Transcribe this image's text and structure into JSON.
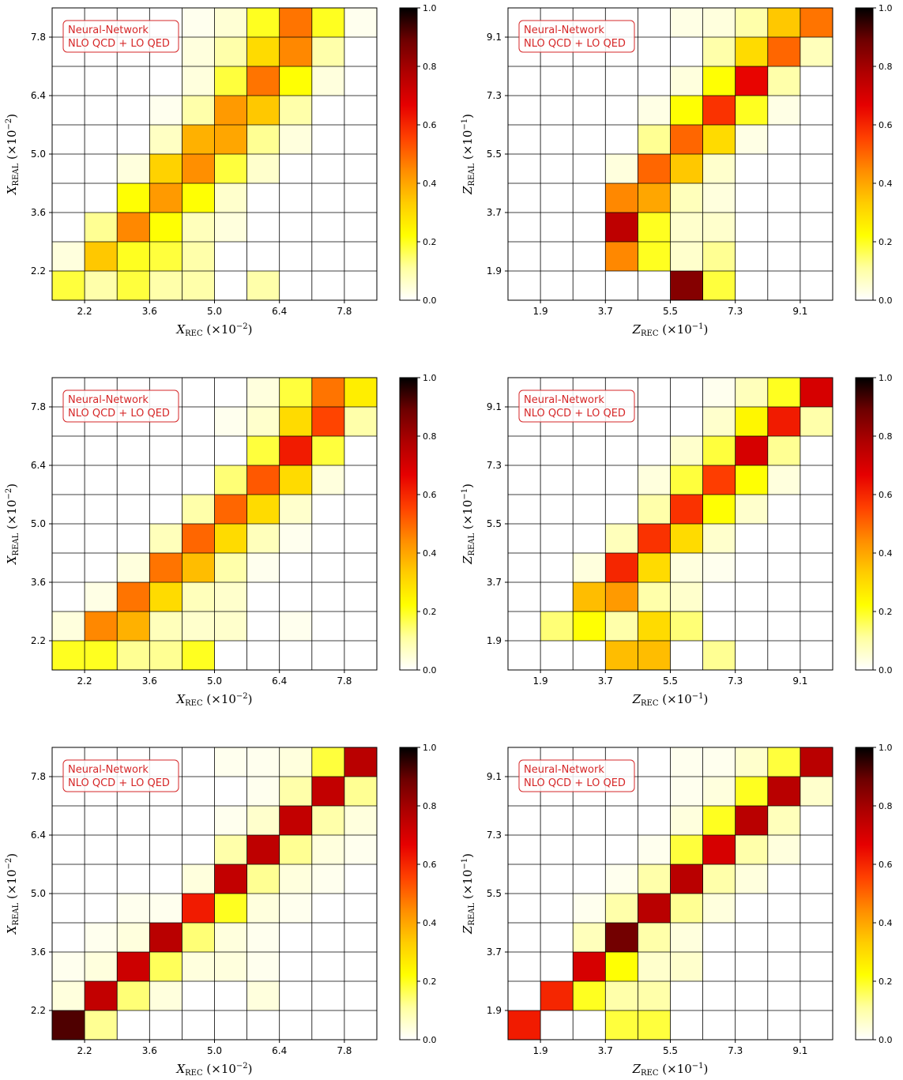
{
  "figure": {
    "annotation_line1": "Neural-Network",
    "annotation_line2": "NLO QCD + LO QED",
    "colorbar_ticks": [
      "0.0",
      "0.2",
      "0.4",
      "0.6",
      "0.8",
      "1.0"
    ],
    "colorbar_levels": [
      0.0,
      0.2,
      0.4,
      0.6,
      0.8,
      1.0
    ],
    "colormap": [
      "#ffffff",
      "#ffffa0",
      "#ffff00",
      "#ffcc00",
      "#ff8c00",
      "#ff4000",
      "#e60000",
      "#b00000",
      "#6e0000",
      "#000000"
    ]
  },
  "chart_data": [
    {
      "type": "heatmap",
      "variable": "X",
      "xlabel": "X_REC (×10^-2)",
      "ylabel": "X_REAL (×10^-2)",
      "xticks": [
        "2.2",
        "3.6",
        "5.0",
        "6.4",
        "7.8"
      ],
      "yticks": [
        "2.2",
        "3.6",
        "5.0",
        "6.4",
        "7.8"
      ],
      "bins": 10,
      "values": [
        [
          0.18,
          0.1,
          0.18,
          0.1,
          0.1,
          0.0,
          0.1,
          0.0,
          0.0,
          0.0
        ],
        [
          0.04,
          0.34,
          0.2,
          0.18,
          0.1,
          0.0,
          0.0,
          0.0,
          0.0,
          0.0
        ],
        [
          0.0,
          0.12,
          0.45,
          0.22,
          0.08,
          0.04,
          0.0,
          0.0,
          0.0,
          0.0
        ],
        [
          0.0,
          0.0,
          0.22,
          0.42,
          0.22,
          0.06,
          0.0,
          0.0,
          0.0,
          0.0
        ],
        [
          0.0,
          0.0,
          0.04,
          0.32,
          0.44,
          0.18,
          0.06,
          0.0,
          0.0,
          0.0
        ],
        [
          0.0,
          0.0,
          0.0,
          0.07,
          0.38,
          0.4,
          0.12,
          0.04,
          0.0,
          0.0
        ],
        [
          0.0,
          0.0,
          0.0,
          0.02,
          0.1,
          0.42,
          0.34,
          0.1,
          0.0,
          0.0
        ],
        [
          0.0,
          0.0,
          0.0,
          0.0,
          0.04,
          0.18,
          0.48,
          0.22,
          0.04,
          0.0
        ],
        [
          0.0,
          0.0,
          0.0,
          0.0,
          0.04,
          0.1,
          0.3,
          0.45,
          0.1,
          0.0
        ],
        [
          0.0,
          0.0,
          0.0,
          0.0,
          0.02,
          0.05,
          0.2,
          0.48,
          0.2,
          0.02
        ]
      ]
    },
    {
      "type": "heatmap",
      "variable": "Z",
      "xlabel": "Z_REC (×10^-1)",
      "ylabel": "Z_REAL (×10^-1)",
      "xticks": [
        "1.9",
        "3.7",
        "5.5",
        "7.3",
        "9.1"
      ],
      "yticks": [
        "1.9",
        "3.7",
        "5.5",
        "7.3",
        "9.1"
      ],
      "bins": 10,
      "values": [
        [
          0.0,
          0.0,
          0.0,
          0.0,
          0.0,
          0.85,
          0.18,
          0.0,
          0.0,
          0.0
        ],
        [
          0.0,
          0.0,
          0.0,
          0.45,
          0.2,
          0.06,
          0.12,
          0.0,
          0.0,
          0.0
        ],
        [
          0.0,
          0.0,
          0.0,
          0.75,
          0.2,
          0.06,
          0.06,
          0.0,
          0.0,
          0.0
        ],
        [
          0.0,
          0.0,
          0.0,
          0.45,
          0.4,
          0.08,
          0.04,
          0.0,
          0.0,
          0.0
        ],
        [
          0.0,
          0.0,
          0.0,
          0.04,
          0.5,
          0.34,
          0.06,
          0.0,
          0.0,
          0.0
        ],
        [
          0.0,
          0.0,
          0.0,
          0.0,
          0.12,
          0.5,
          0.3,
          0.03,
          0.0,
          0.0
        ],
        [
          0.0,
          0.0,
          0.0,
          0.0,
          0.03,
          0.22,
          0.58,
          0.2,
          0.03,
          0.0
        ],
        [
          0.0,
          0.0,
          0.0,
          0.0,
          0.0,
          0.04,
          0.22,
          0.66,
          0.1,
          0.0
        ],
        [
          0.0,
          0.0,
          0.0,
          0.0,
          0.0,
          0.0,
          0.1,
          0.3,
          0.5,
          0.08
        ],
        [
          0.0,
          0.0,
          0.0,
          0.0,
          0.0,
          0.03,
          0.04,
          0.1,
          0.34,
          0.48
        ]
      ]
    },
    {
      "type": "heatmap",
      "variable": "X",
      "xlabel": "X_REC (×10^-2)",
      "ylabel": "X_REAL (×10^-2)",
      "xticks": [
        "2.2",
        "3.6",
        "5.0",
        "6.4",
        "7.8"
      ],
      "yticks": [
        "2.2",
        "3.6",
        "5.0",
        "6.4",
        "7.8"
      ],
      "bins": 10,
      "values": [
        [
          0.2,
          0.2,
          0.12,
          0.12,
          0.2,
          0.0,
          0.0,
          0.0,
          0.0,
          0.0
        ],
        [
          0.04,
          0.45,
          0.38,
          0.08,
          0.06,
          0.06,
          0.0,
          0.02,
          0.0,
          0.0
        ],
        [
          0.0,
          0.03,
          0.48,
          0.3,
          0.08,
          0.06,
          0.0,
          0.0,
          0.0,
          0.0
        ],
        [
          0.0,
          0.0,
          0.04,
          0.48,
          0.36,
          0.1,
          0.02,
          0.0,
          0.0,
          0.0
        ],
        [
          0.0,
          0.0,
          0.0,
          0.08,
          0.5,
          0.3,
          0.08,
          0.02,
          0.0,
          0.0
        ],
        [
          0.0,
          0.0,
          0.0,
          0.0,
          0.1,
          0.5,
          0.3,
          0.06,
          0.0,
          0.0
        ],
        [
          0.0,
          0.0,
          0.0,
          0.0,
          0.0,
          0.14,
          0.52,
          0.3,
          0.04,
          0.0
        ],
        [
          0.0,
          0.0,
          0.0,
          0.0,
          0.0,
          0.0,
          0.18,
          0.62,
          0.18,
          0.0
        ],
        [
          0.0,
          0.0,
          0.0,
          0.0,
          0.0,
          0.02,
          0.06,
          0.3,
          0.55,
          0.1
        ],
        [
          0.0,
          0.0,
          0.0,
          0.0,
          0.0,
          0.0,
          0.04,
          0.18,
          0.48,
          0.26
        ]
      ]
    },
    {
      "type": "heatmap",
      "variable": "Z",
      "xlabel": "Z_REC (×10^-1)",
      "ylabel": "Z_REAL (×10^-1)",
      "xticks": [
        "1.9",
        "3.7",
        "5.5",
        "7.3",
        "9.1"
      ],
      "yticks": [
        "1.9",
        "3.7",
        "5.5",
        "7.3",
        "9.1"
      ],
      "bins": 10,
      "values": [
        [
          0.0,
          0.0,
          0.0,
          0.36,
          0.36,
          0.0,
          0.12,
          0.0,
          0.0,
          0.0
        ],
        [
          0.0,
          0.14,
          0.22,
          0.1,
          0.3,
          0.14,
          0.0,
          0.0,
          0.0,
          0.0
        ],
        [
          0.0,
          0.0,
          0.36,
          0.42,
          0.1,
          0.06,
          0.0,
          0.0,
          0.0,
          0.0
        ],
        [
          0.0,
          0.0,
          0.04,
          0.6,
          0.3,
          0.04,
          0.02,
          0.0,
          0.0,
          0.0
        ],
        [
          0.0,
          0.0,
          0.0,
          0.08,
          0.58,
          0.3,
          0.06,
          0.0,
          0.0,
          0.0
        ],
        [
          0.0,
          0.0,
          0.0,
          0.0,
          0.1,
          0.58,
          0.22,
          0.06,
          0.0,
          0.0
        ],
        [
          0.0,
          0.0,
          0.0,
          0.0,
          0.04,
          0.18,
          0.56,
          0.22,
          0.04,
          0.0
        ],
        [
          0.0,
          0.0,
          0.0,
          0.0,
          0.0,
          0.06,
          0.18,
          0.7,
          0.12,
          0.0
        ],
        [
          0.0,
          0.0,
          0.0,
          0.0,
          0.0,
          0.0,
          0.06,
          0.24,
          0.62,
          0.1
        ],
        [
          0.0,
          0.0,
          0.0,
          0.0,
          0.0,
          0.0,
          0.02,
          0.08,
          0.2,
          0.7
        ]
      ]
    },
    {
      "type": "heatmap",
      "variable": "X",
      "xlabel": "X_REC (×10^-2)",
      "ylabel": "X_REAL (×10^-2)",
      "xticks": [
        "2.2",
        "3.6",
        "5.0",
        "6.4",
        "7.8"
      ],
      "yticks": [
        "2.2",
        "3.6",
        "5.0",
        "6.4",
        "7.8"
      ],
      "bins": 10,
      "values": [
        [
          0.92,
          0.12,
          0.0,
          0.0,
          0.0,
          0.0,
          0.0,
          0.0,
          0.0,
          0.0
        ],
        [
          0.04,
          0.74,
          0.14,
          0.04,
          0.0,
          0.0,
          0.04,
          0.0,
          0.0,
          0.0
        ],
        [
          0.02,
          0.04,
          0.72,
          0.16,
          0.04,
          0.04,
          0.02,
          0.0,
          0.0,
          0.0
        ],
        [
          0.0,
          0.02,
          0.04,
          0.76,
          0.14,
          0.04,
          0.02,
          0.0,
          0.0,
          0.0
        ],
        [
          0.0,
          0.0,
          0.02,
          0.02,
          0.62,
          0.2,
          0.04,
          0.02,
          0.0,
          0.0
        ],
        [
          0.0,
          0.0,
          0.0,
          0.0,
          0.04,
          0.74,
          0.12,
          0.04,
          0.02,
          0.0
        ],
        [
          0.0,
          0.0,
          0.0,
          0.0,
          0.0,
          0.1,
          0.75,
          0.12,
          0.04,
          0.02
        ],
        [
          0.0,
          0.0,
          0.0,
          0.0,
          0.0,
          0.02,
          0.06,
          0.74,
          0.1,
          0.04
        ],
        [
          0.0,
          0.0,
          0.0,
          0.0,
          0.0,
          0.0,
          0.02,
          0.1,
          0.74,
          0.12
        ],
        [
          0.0,
          0.0,
          0.0,
          0.0,
          0.0,
          0.02,
          0.02,
          0.04,
          0.18,
          0.76
        ]
      ]
    },
    {
      "type": "heatmap",
      "variable": "Z",
      "xlabel": "Z_REC (×10^-1)",
      "ylabel": "Z_REAL (×10^-1)",
      "xticks": [
        "1.9",
        "3.7",
        "5.5",
        "7.3",
        "9.1"
      ],
      "yticks": [
        "1.9",
        "3.7",
        "5.5",
        "7.3",
        "9.1"
      ],
      "bins": 10,
      "values": [
        [
          0.62,
          0.0,
          0.0,
          0.18,
          0.18,
          0.0,
          0.0,
          0.0,
          0.0,
          0.0
        ],
        [
          0.0,
          0.6,
          0.2,
          0.1,
          0.1,
          0.0,
          0.0,
          0.0,
          0.0,
          0.0
        ],
        [
          0.0,
          0.0,
          0.7,
          0.22,
          0.06,
          0.06,
          0.0,
          0.0,
          0.0,
          0.0
        ],
        [
          0.0,
          0.0,
          0.08,
          0.88,
          0.1,
          0.04,
          0.0,
          0.0,
          0.0,
          0.0
        ],
        [
          0.0,
          0.0,
          0.02,
          0.1,
          0.76,
          0.12,
          0.04,
          0.0,
          0.0,
          0.0
        ],
        [
          0.0,
          0.0,
          0.0,
          0.02,
          0.1,
          0.76,
          0.1,
          0.04,
          0.0,
          0.0
        ],
        [
          0.0,
          0.0,
          0.0,
          0.0,
          0.02,
          0.18,
          0.7,
          0.1,
          0.04,
          0.0
        ],
        [
          0.0,
          0.0,
          0.0,
          0.0,
          0.0,
          0.04,
          0.2,
          0.76,
          0.08,
          0.0
        ],
        [
          0.0,
          0.0,
          0.0,
          0.0,
          0.0,
          0.02,
          0.04,
          0.2,
          0.76,
          0.06
        ],
        [
          0.0,
          0.0,
          0.0,
          0.0,
          0.0,
          0.02,
          0.02,
          0.06,
          0.18,
          0.76
        ]
      ]
    }
  ]
}
